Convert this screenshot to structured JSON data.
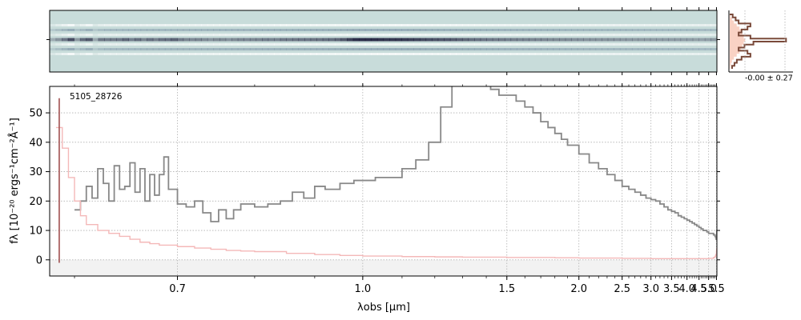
{
  "chart_data": {
    "type": "line",
    "title": "",
    "object_id": "5105_28726",
    "xlabel": "λobs [μm]",
    "ylabel": "fλ [10⁻²⁰ ergs⁻¹cm⁻²Å⁻¹]",
    "x_scale": "reciprocal",
    "xlim": [
      0.58,
      5.53
    ],
    "ylim": [
      -5.5,
      59
    ],
    "x_ticks": [
      0.7,
      1.0,
      1.5,
      2.0,
      2.5,
      3.0,
      3.5,
      4.0,
      4.5,
      5.0,
      5.5
    ],
    "x_tick_labels": [
      "0.7",
      "1.0",
      "1.5",
      "2.0",
      "2.5",
      "3.0",
      "3.5",
      "4.0",
      "4.5",
      "5.0",
      "5.5"
    ],
    "y_ticks": [
      0,
      10,
      20,
      30,
      40,
      50
    ],
    "y_tick_labels": [
      "0",
      "10",
      "20",
      "30",
      "40",
      "50"
    ],
    "grid": true,
    "series": [
      {
        "role": "flux",
        "color": "#888888",
        "x": [
          0.6,
          0.605,
          0.61,
          0.615,
          0.62,
          0.625,
          0.63,
          0.635,
          0.64,
          0.645,
          0.65,
          0.655,
          0.66,
          0.665,
          0.67,
          0.675,
          0.68,
          0.685,
          0.69,
          0.7,
          0.71,
          0.72,
          0.73,
          0.74,
          0.75,
          0.76,
          0.77,
          0.78,
          0.8,
          0.82,
          0.84,
          0.86,
          0.88,
          0.9,
          0.92,
          0.95,
          0.98,
          1.0,
          1.03,
          1.06,
          1.1,
          1.14,
          1.18,
          1.22,
          1.26,
          1.3,
          1.34,
          1.38,
          1.42,
          1.46,
          1.5,
          1.55,
          1.6,
          1.65,
          1.7,
          1.75,
          1.8,
          1.85,
          1.9,
          2.0,
          2.1,
          2.2,
          2.3,
          2.4,
          2.5,
          2.6,
          2.7,
          2.8,
          2.9,
          3.0,
          3.1,
          3.2,
          3.3,
          3.4,
          3.5,
          3.6,
          3.7,
          3.8,
          3.9,
          4.0,
          4.1,
          4.2,
          4.3,
          4.4,
          4.5,
          4.6,
          4.7,
          4.8,
          4.9,
          5.0,
          5.1,
          5.2,
          5.3,
          5.4,
          5.45,
          5.48,
          5.5,
          5.52
        ],
        "y": [
          17,
          20,
          25,
          21,
          31,
          26,
          20,
          32,
          24,
          25,
          33,
          23,
          31,
          20,
          29,
          22,
          29,
          35,
          24,
          19,
          18,
          20,
          16,
          13,
          17,
          14,
          17,
          19,
          18,
          19,
          20,
          23,
          21,
          25,
          24,
          26,
          27,
          27,
          28,
          28,
          31,
          34,
          40,
          52,
          61,
          63,
          62,
          60,
          58,
          56,
          56,
          54,
          52,
          50,
          47,
          45,
          43,
          41,
          39,
          36,
          33,
          31,
          29,
          27,
          25,
          24,
          23,
          22,
          21,
          20.5,
          20,
          19,
          18,
          17,
          16.5,
          16,
          15,
          14.5,
          14,
          13.5,
          13,
          12.5,
          12,
          11.5,
          11,
          10.5,
          10,
          10,
          9.5,
          9,
          9,
          9,
          8.5,
          8,
          7.5,
          7,
          8,
          10
        ]
      },
      {
        "role": "error",
        "color": "#f4b8b8",
        "x": [
          0.585,
          0.59,
          0.595,
          0.6,
          0.605,
          0.61,
          0.62,
          0.63,
          0.64,
          0.65,
          0.66,
          0.67,
          0.68,
          0.7,
          0.72,
          0.74,
          0.76,
          0.78,
          0.8,
          0.85,
          0.9,
          0.95,
          1.0,
          1.1,
          1.2,
          1.3,
          1.5,
          1.8,
          2.0,
          2.5,
          3.0,
          3.5,
          4.0,
          4.5,
          5.0,
          5.3,
          5.4,
          5.45,
          5.5,
          5.52
        ],
        "y": [
          45,
          38,
          28,
          20,
          15,
          12,
          10,
          9,
          8,
          7,
          6,
          5.5,
          5,
          4.5,
          4,
          3.6,
          3.2,
          3,
          2.8,
          2.2,
          1.8,
          1.5,
          1.3,
          1.1,
          1.0,
          0.9,
          0.8,
          0.7,
          0.6,
          0.5,
          0.4,
          0.4,
          0.4,
          0.4,
          0.5,
          0.8,
          1.2,
          1.8,
          3,
          4
        ]
      }
    ],
    "edge_marker": {
      "x": 0.585,
      "y_range": [
        -1,
        55
      ],
      "color": "#a05050"
    }
  },
  "histogram_panel": {
    "label": "-0.00 ± 0.27",
    "bin_counts": [
      0.05,
      0.1,
      0.15,
      0.35,
      0.3,
      0.2,
      0.15,
      0.35,
      0.95,
      0.4,
      0.25,
      0.15,
      0.3,
      0.35,
      0.2,
      0.12,
      0.08,
      0.04
    ],
    "reference_counts": [
      0.03,
      0.08,
      0.15,
      0.25,
      0.35,
      0.4,
      0.45,
      0.5,
      0.55,
      0.5,
      0.45,
      0.4,
      0.35,
      0.25,
      0.15,
      0.08,
      0.04,
      0.02
    ],
    "line_color": "#7a4a3a",
    "fill_color": "#f8c7b5"
  },
  "image_panel": {
    "background": "#c8dcda",
    "trace_color": "#1c1c3a"
  }
}
